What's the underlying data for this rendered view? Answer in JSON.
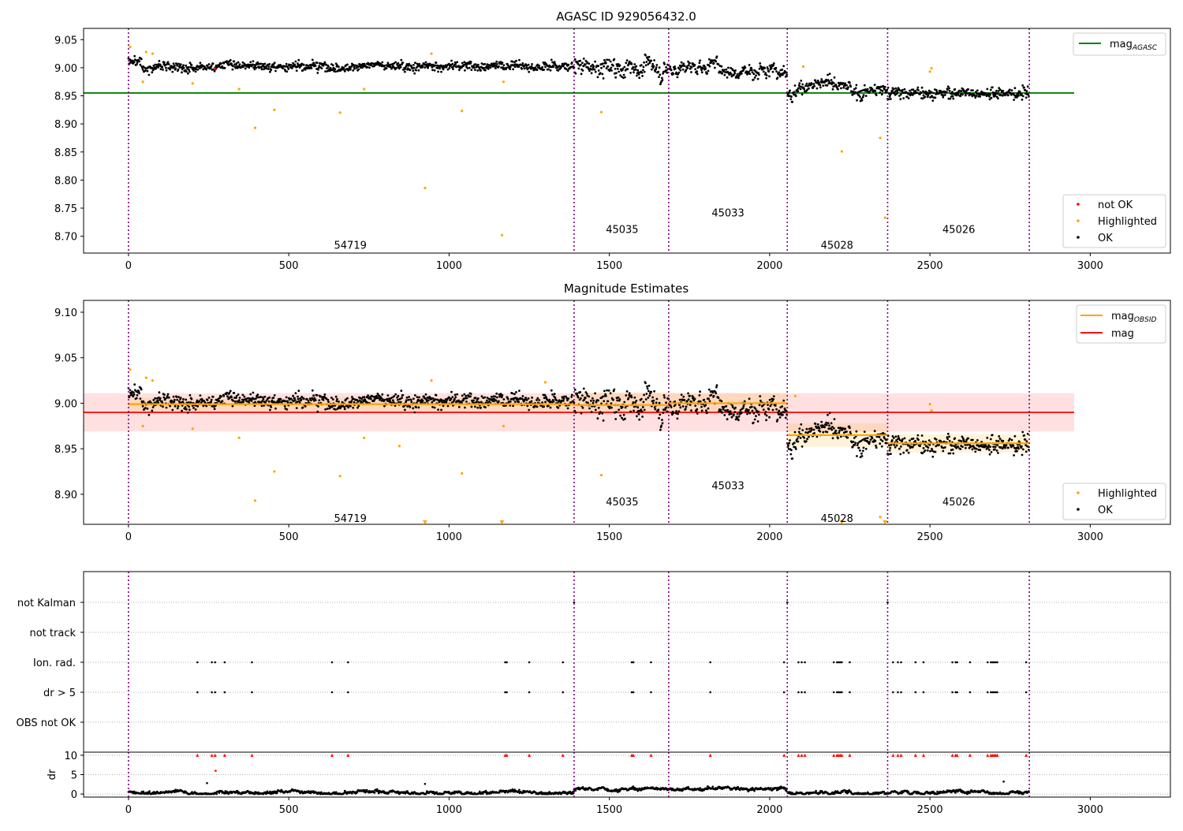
{
  "chart_data": [
    {
      "type": "scatter",
      "title": "AGASC ID 929056432.0",
      "xlim": [
        -140,
        3250
      ],
      "ylim": [
        8.67,
        9.07
      ],
      "xticks": [
        0,
        500,
        1000,
        1500,
        2000,
        2500,
        3000
      ],
      "yticks": [
        8.7,
        8.75,
        8.8,
        8.85,
        8.9,
        8.95,
        9.0,
        9.05
      ],
      "obsid_boundaries": [
        0,
        1390,
        1685,
        2055,
        2368,
        2810
      ],
      "obsid_labels": [
        {
          "text": "54719",
          "x": 692,
          "y": 8.685
        },
        {
          "text": "45035",
          "x": 1540,
          "y": 8.713
        },
        {
          "text": "45033",
          "x": 1870,
          "y": 8.742
        },
        {
          "text": "45028",
          "x": 2210,
          "y": 8.685
        },
        {
          "text": "45026",
          "x": 2590,
          "y": 8.713
        }
      ],
      "hlines": [
        {
          "name": "mag_AGASC",
          "y": 8.955,
          "x": [
            -140,
            2950
          ],
          "color": "#008000"
        }
      ],
      "segments": [
        {
          "x0": 0,
          "x1": 1390,
          "mean": 9.003,
          "sd": 0.008
        },
        {
          "x0": 1390,
          "x1": 1685,
          "mean": 9.0,
          "sd": 0.013
        },
        {
          "x0": 1685,
          "x1": 2055,
          "mean": 9.0,
          "sd": 0.01
        },
        {
          "x0": 2055,
          "x1": 2368,
          "mean": 8.963,
          "sd": 0.01
        },
        {
          "x0": 2368,
          "x1": 2810,
          "mean": 8.955,
          "sd": 0.01
        }
      ],
      "highlighted": [
        [
          5,
          9.037
        ],
        [
          45,
          8.975
        ],
        [
          55,
          9.028
        ],
        [
          75,
          9.025
        ],
        [
          200,
          8.972
        ],
        [
          345,
          8.962
        ],
        [
          395,
          8.893
        ],
        [
          455,
          8.925
        ],
        [
          660,
          8.92
        ],
        [
          735,
          8.962
        ],
        [
          925,
          8.786
        ],
        [
          945,
          9.025
        ],
        [
          1040,
          8.923
        ],
        [
          1165,
          8.702
        ],
        [
          1170,
          8.975
        ],
        [
          1475,
          8.921
        ],
        [
          2105,
          9.002
        ],
        [
          2225,
          8.851
        ],
        [
          2345,
          8.875
        ],
        [
          2360,
          8.733
        ],
        [
          2500,
          8.993
        ],
        [
          2505,
          8.999
        ]
      ],
      "not_ok": [
        [
          270,
          8.998
        ]
      ],
      "legend": {
        "top_right": [
          {
            "label": "mag",
            "sub": "AGASC",
            "color": "#008000"
          }
        ],
        "bottom_right": [
          {
            "label": "not OK",
            "color": "#ff0000"
          },
          {
            "label": "Highlighted",
            "color": "#ffa500"
          },
          {
            "label": "OK",
            "color": "#000000"
          }
        ]
      }
    },
    {
      "type": "scatter",
      "title": "Magnitude Estimates",
      "xlim": [
        -140,
        3250
      ],
      "ylim": [
        8.867,
        9.113
      ],
      "xticks": [
        0,
        500,
        1000,
        1500,
        2000,
        2500,
        3000
      ],
      "yticks": [
        8.9,
        8.95,
        9.0,
        9.05,
        9.1
      ],
      "obsid_boundaries": [
        0,
        1390,
        1685,
        2055,
        2368,
        2810
      ],
      "obsid_labels": [
        {
          "text": "54719",
          "x": 692,
          "y": 8.874
        },
        {
          "text": "45035",
          "x": 1540,
          "y": 8.892
        },
        {
          "text": "45033",
          "x": 1870,
          "y": 8.91
        },
        {
          "text": "45028",
          "x": 2210,
          "y": 8.874
        },
        {
          "text": "45026",
          "x": 2590,
          "y": 8.892
        }
      ],
      "mag": {
        "y": 8.99,
        "band": [
          8.969,
          9.011
        ],
        "x": [
          -140,
          2950
        ],
        "color": "#ff0000"
      },
      "mag_obsid": [
        {
          "x0": 0,
          "x1": 1390,
          "y": 8.999,
          "band": [
            8.991,
            9.006
          ]
        },
        {
          "x0": 1390,
          "x1": 1685,
          "y": 8.998,
          "band": [
            8.988,
            9.012
          ]
        },
        {
          "x0": 1685,
          "x1": 2055,
          "y": 9.0,
          "band": [
            8.99,
            9.011
          ]
        },
        {
          "x0": 2055,
          "x1": 2368,
          "y": 8.965,
          "band": [
            8.952,
            8.978
          ]
        },
        {
          "x0": 2368,
          "x1": 2810,
          "y": 8.956,
          "band": [
            8.946,
            8.966
          ]
        }
      ],
      "highlighted": [
        [
          5,
          9.037
        ],
        [
          45,
          8.975
        ],
        [
          55,
          9.028
        ],
        [
          75,
          9.025
        ],
        [
          200,
          8.972
        ],
        [
          345,
          8.962
        ],
        [
          395,
          8.893
        ],
        [
          455,
          8.925
        ],
        [
          660,
          8.92
        ],
        [
          735,
          8.962
        ],
        [
          845,
          8.953
        ],
        [
          945,
          9.025
        ],
        [
          1040,
          8.923
        ],
        [
          1170,
          8.975
        ],
        [
          1475,
          8.921
        ],
        [
          1300,
          9.023
        ],
        [
          2080,
          9.008
        ],
        [
          2345,
          8.875
        ],
        [
          2500,
          8.999
        ],
        [
          2505,
          8.992
        ]
      ],
      "below_axis": [
        925,
        1165,
        2225,
        2360
      ],
      "legend": {
        "top_right": [
          {
            "label": "mag",
            "sub": "OBSID",
            "color": "#ffa500"
          },
          {
            "label": "mag",
            "sub": "",
            "color": "#ff0000"
          }
        ],
        "bottom_right": [
          {
            "label": "Highlighted",
            "color": "#ffa500"
          },
          {
            "label": "OK",
            "color": "#000000"
          }
        ]
      }
    },
    {
      "type": "scatter",
      "xlim": [
        -140,
        3250
      ],
      "xticks": [
        0,
        500,
        1000,
        1500,
        2000,
        2500,
        3000
      ],
      "flag_rows": [
        "not Kalman",
        "not track",
        "Ion. rad.",
        "dr > 5",
        "OBS not OK"
      ],
      "obsid_boundaries": [
        0,
        1390,
        1685,
        2055,
        2368,
        2810
      ],
      "not_kalman_x": [
        1390,
        2055,
        2368
      ],
      "ion_rad_x": [
        215,
        260,
        270,
        300,
        385,
        635,
        685,
        1175,
        1180,
        1250,
        1355,
        1570,
        1575,
        1630,
        1815,
        2045,
        2090,
        2100,
        2110,
        2200,
        2210,
        2215,
        2220,
        2225,
        2250,
        2385,
        2400,
        2410,
        2455,
        2480,
        2570,
        2580,
        2585,
        2625,
        2680,
        2690,
        2695,
        2700,
        2705,
        2710,
        2800
      ],
      "dr_gt5_x": [
        215,
        260,
        270,
        300,
        385,
        635,
        685,
        1175,
        1180,
        1250,
        1355,
        1570,
        1575,
        1630,
        1815,
        2045,
        2090,
        2100,
        2110,
        2200,
        2210,
        2215,
        2220,
        2225,
        2250,
        2385,
        2400,
        2410,
        2455,
        2480,
        2570,
        2580,
        2585,
        2625,
        2680,
        2690,
        2695,
        2700,
        2705,
        2710,
        2800
      ],
      "dr_axis": {
        "ylabel": "dr",
        "ylim": [
          -0.8,
          10.8
        ],
        "yticks": [
          0,
          5,
          10
        ],
        "clip_value": 10
      },
      "dr_outliers": [
        [
          245,
          2.8
        ],
        [
          272,
          6.0
        ],
        [
          925,
          2.6
        ],
        [
          2730,
          3.2
        ]
      ]
    }
  ]
}
